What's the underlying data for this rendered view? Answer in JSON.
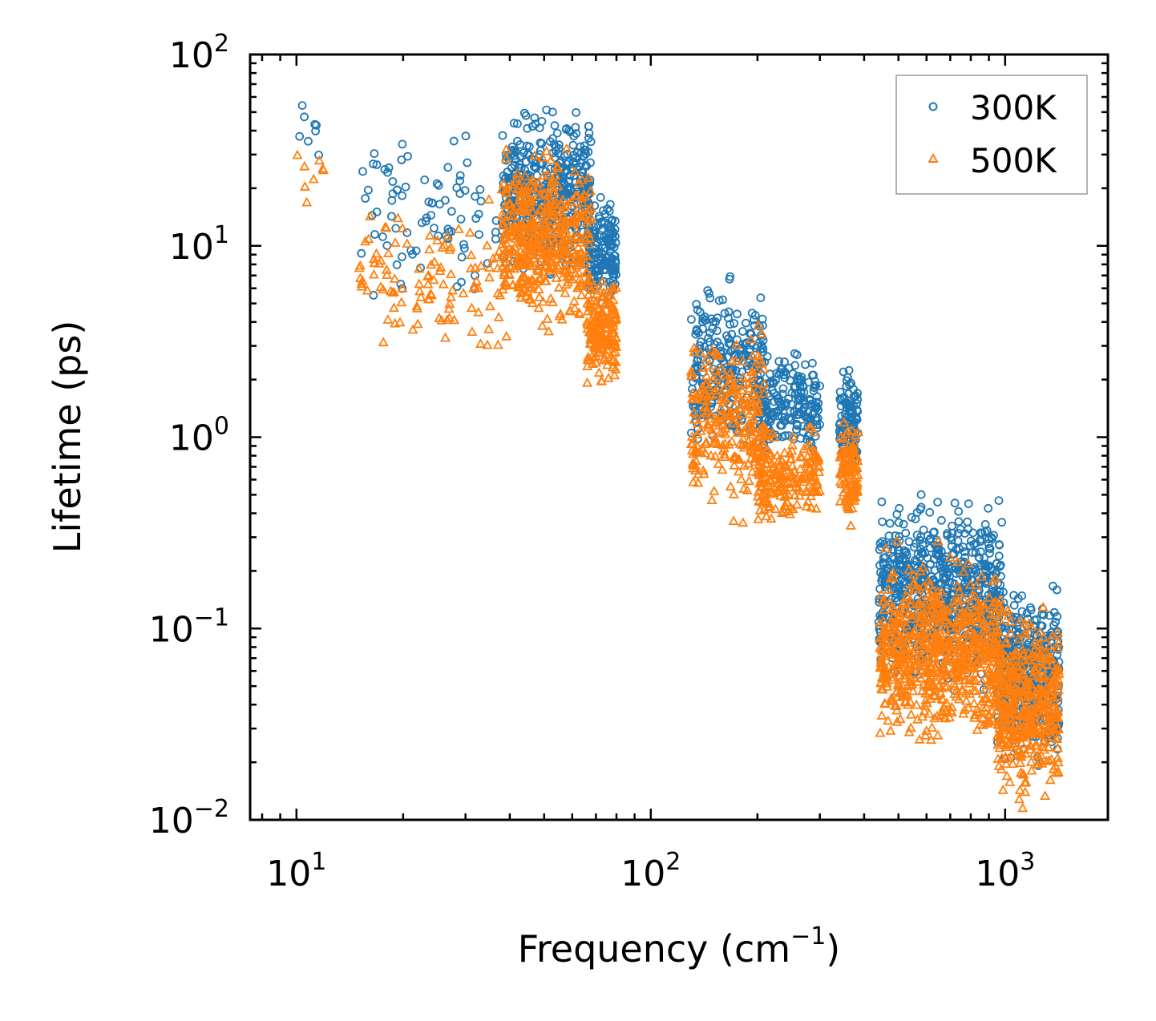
{
  "chart_data": {
    "type": "scatter",
    "title": "",
    "xlabel": "Frequency (cm",
    "xlabel_sup": "−1",
    "xlabel_tail": ")",
    "ylabel": "Lifetime (ps)",
    "xscale": "log",
    "yscale": "log",
    "xlim": [
      7.4,
      1950
    ],
    "ylim": [
      0.01,
      100
    ],
    "legend_position": "top-right",
    "x_ticks": [
      {
        "value": 10,
        "base": "10",
        "exp": "1"
      },
      {
        "value": 100,
        "base": "10",
        "exp": "2"
      },
      {
        "value": 1000,
        "base": "10",
        "exp": "3"
      }
    ],
    "y_ticks": [
      {
        "value": 100,
        "base": "10",
        "exp": "2"
      },
      {
        "value": 10,
        "base": "10",
        "exp": "1"
      },
      {
        "value": 1,
        "base": "10",
        "exp": "0"
      },
      {
        "value": 0.1,
        "base": "10",
        "exp": "−1"
      },
      {
        "value": 0.01,
        "base": "10",
        "exp": "−2"
      }
    ],
    "series": [
      {
        "name": "300K",
        "marker": "circle",
        "color": "#1f77b4",
        "clusters": [
          {
            "fmin": 10,
            "fmax": 12,
            "lmin": 20,
            "lmax": 66,
            "count": 8
          },
          {
            "fmin": 15,
            "fmax": 40,
            "lmin": 4,
            "lmax": 52,
            "count": 90
          },
          {
            "fmin": 38,
            "fmax": 68,
            "lmin": 6,
            "lmax": 65,
            "count": 420
          },
          {
            "fmin": 66,
            "fmax": 80,
            "lmin": 4,
            "lmax": 20,
            "count": 160
          },
          {
            "fmin": 130,
            "fmax": 210,
            "lmin": 0.6,
            "lmax": 8.2,
            "count": 260
          },
          {
            "fmin": 200,
            "fmax": 300,
            "lmin": 0.7,
            "lmax": 3.3,
            "count": 200
          },
          {
            "fmin": 340,
            "fmax": 385,
            "lmin": 0.5,
            "lmax": 2.8,
            "count": 110
          },
          {
            "fmin": 440,
            "fmax": 980,
            "lmin": 0.04,
            "lmax": 0.6,
            "count": 700
          },
          {
            "fmin": 950,
            "fmax": 1420,
            "lmin": 0.016,
            "lmax": 0.21,
            "count": 420
          }
        ]
      },
      {
        "name": "500K",
        "marker": "triangle",
        "color": "#ff7f0e",
        "clusters": [
          {
            "fmin": 10,
            "fmax": 12,
            "lmin": 13,
            "lmax": 39,
            "count": 8
          },
          {
            "fmin": 15,
            "fmax": 40,
            "lmin": 1.9,
            "lmax": 22,
            "count": 110
          },
          {
            "fmin": 38,
            "fmax": 68,
            "lmin": 3,
            "lmax": 38,
            "count": 460
          },
          {
            "fmin": 66,
            "fmax": 80,
            "lmin": 1.7,
            "lmax": 8,
            "count": 180
          },
          {
            "fmin": 130,
            "fmax": 210,
            "lmin": 0.33,
            "lmax": 4.5,
            "count": 260
          },
          {
            "fmin": 200,
            "fmax": 300,
            "lmin": 0.3,
            "lmax": 1.3,
            "count": 200
          },
          {
            "fmin": 340,
            "fmax": 385,
            "lmin": 0.3,
            "lmax": 1.5,
            "count": 110
          },
          {
            "fmin": 440,
            "fmax": 980,
            "lmin": 0.02,
            "lmax": 0.3,
            "count": 700
          },
          {
            "fmin": 950,
            "fmax": 1420,
            "lmin": 0.01,
            "lmax": 0.15,
            "count": 420
          }
        ]
      }
    ]
  }
}
